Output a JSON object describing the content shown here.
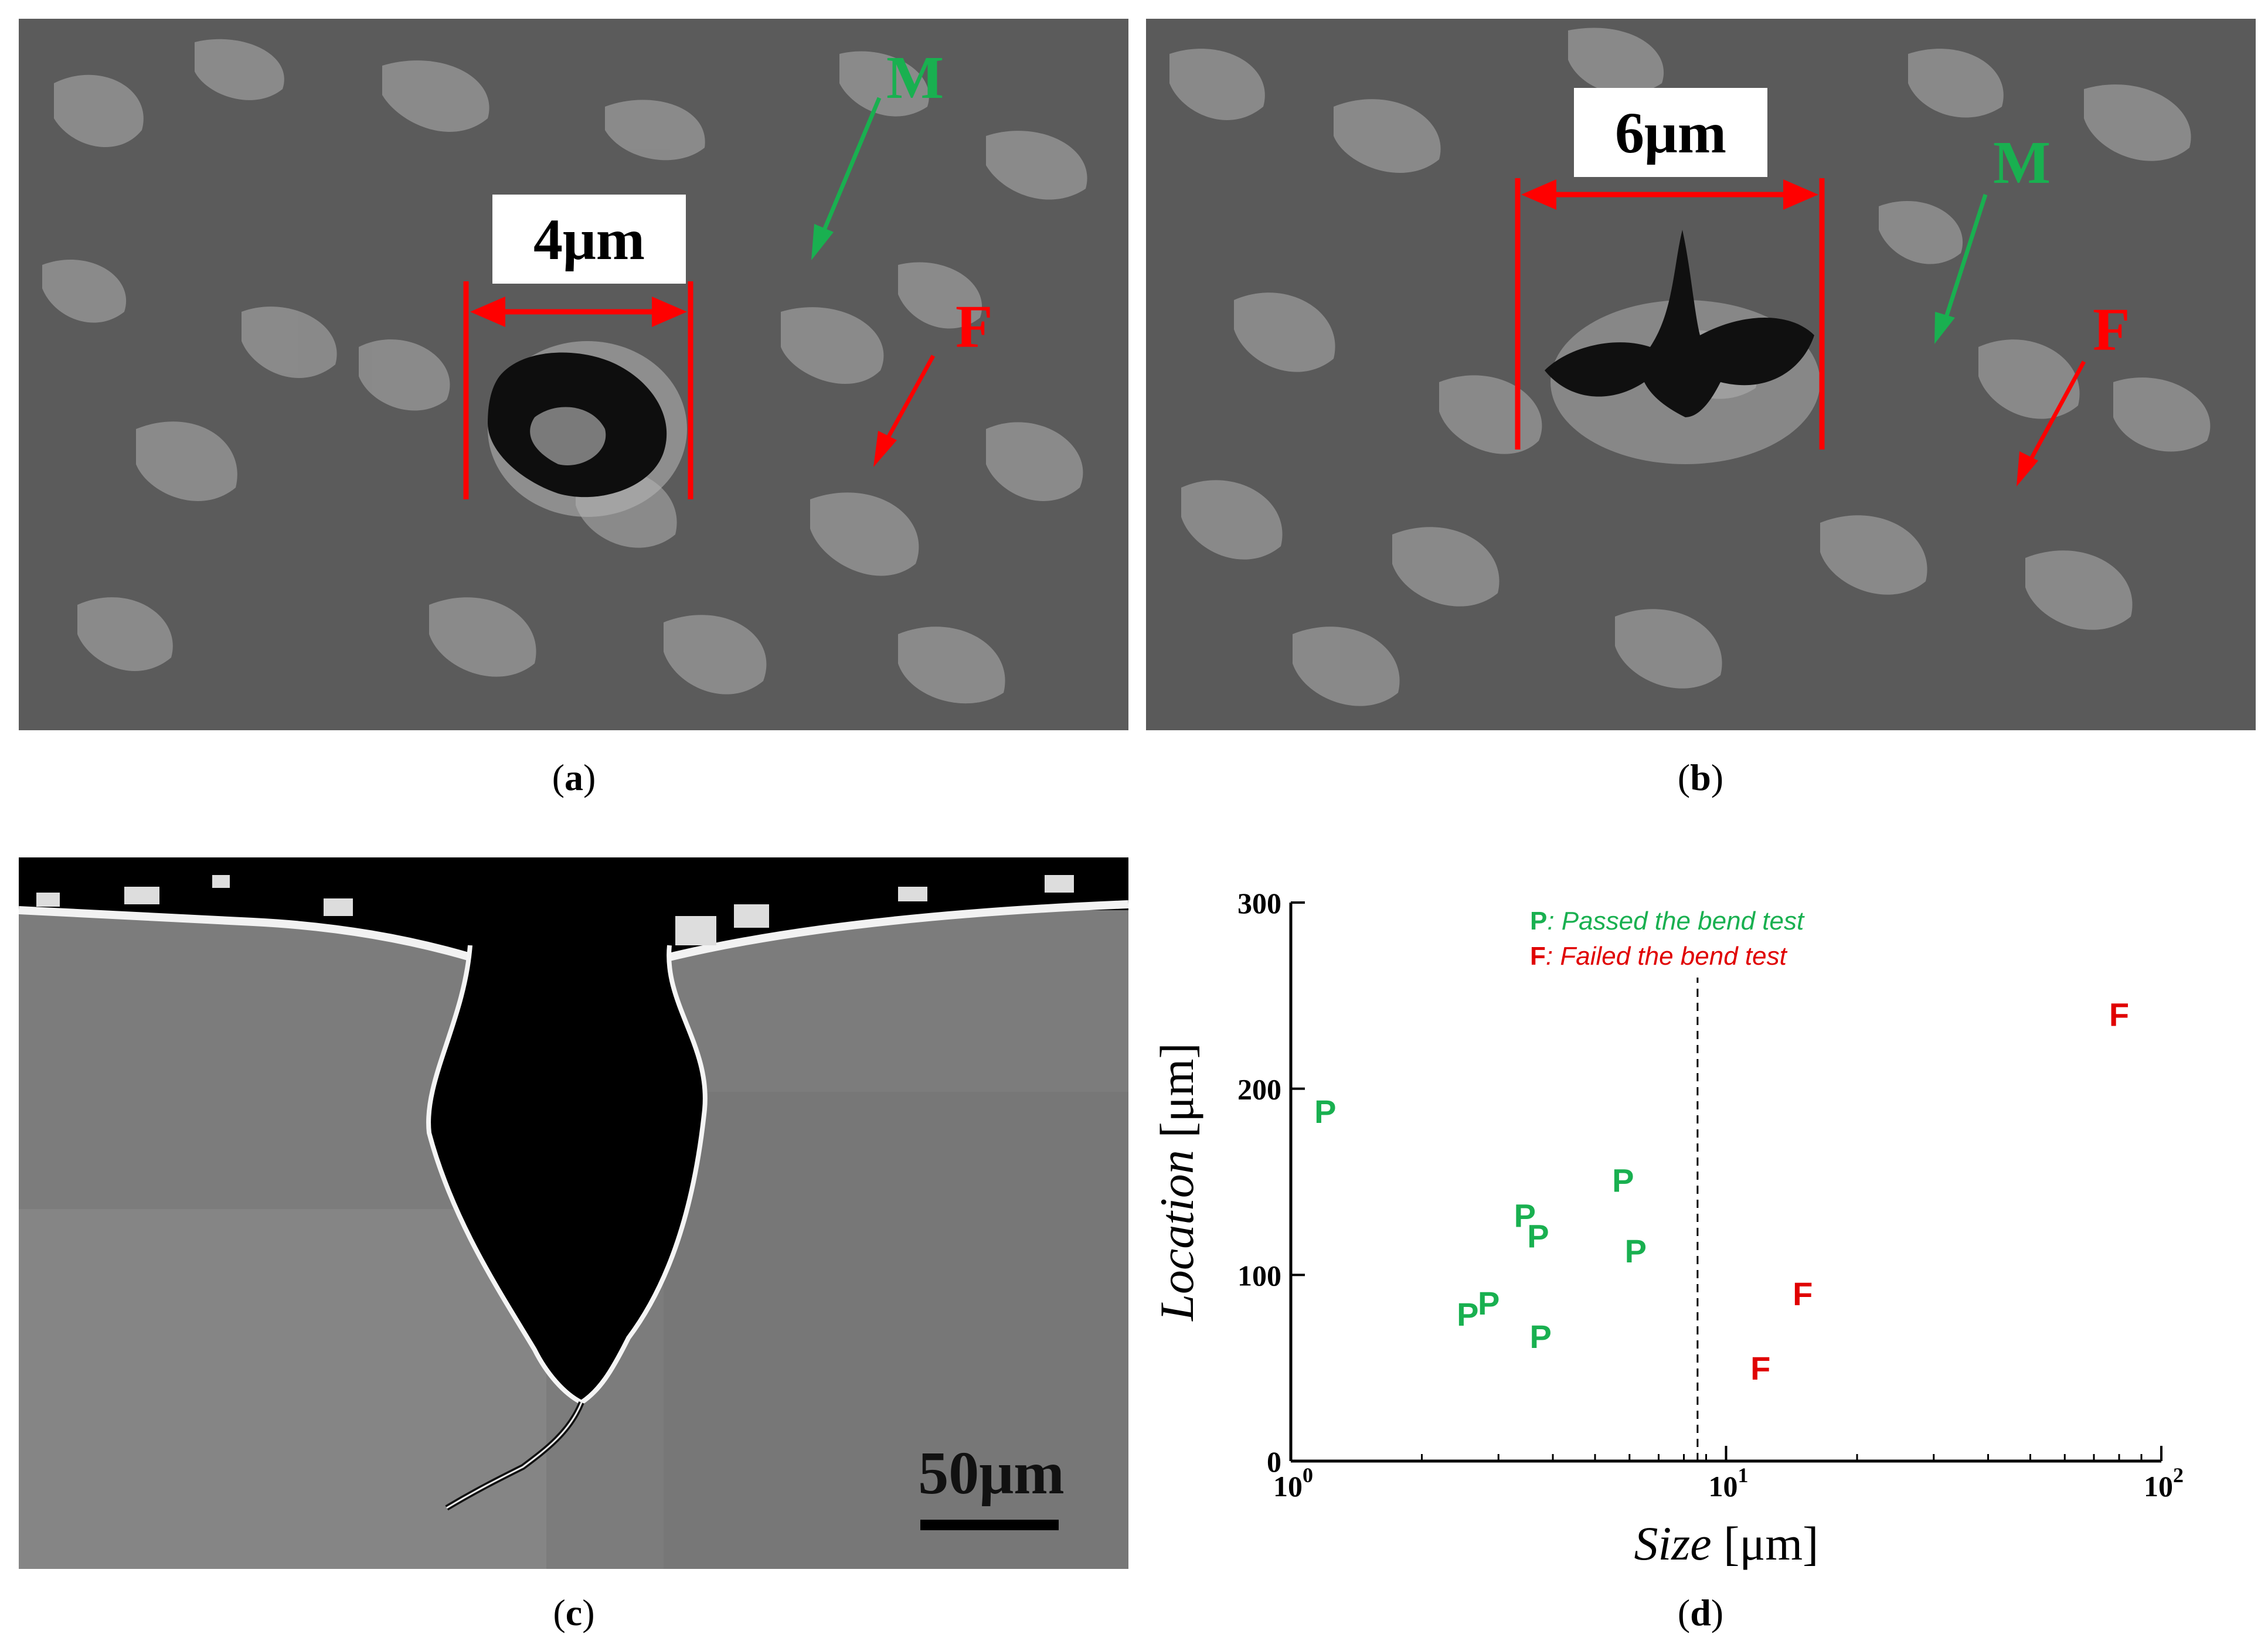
{
  "figure": {
    "panel_a": {
      "caption": "a",
      "scale_label": "4μm",
      "phase_m": "M",
      "phase_f": "F",
      "colors": {
        "dimension": "#ff0000",
        "martensite": "#19b050",
        "ferrite": "#ff0000"
      }
    },
    "panel_b": {
      "caption": "b",
      "scale_label": "6μm",
      "phase_m": "M",
      "phase_f": "F",
      "colors": {
        "dimension": "#ff0000",
        "martensite": "#19b050",
        "ferrite": "#ff0000"
      }
    },
    "panel_c": {
      "caption": "c",
      "scale_bar_label": "50μm"
    },
    "panel_d": {
      "caption": "d"
    }
  },
  "chart_data": {
    "type": "scatter",
    "title": "",
    "xlabel": "Size",
    "xlabel_unit": "[μm]",
    "ylabel": "Location",
    "ylabel_unit": "[μm]",
    "xscale": "log",
    "xlim": [
      1,
      100
    ],
    "ylim": [
      0,
      300
    ],
    "x_ticks": [
      {
        "base": "10",
        "exp": "0",
        "value": 1
      },
      {
        "base": "10",
        "exp": "1",
        "value": 10
      },
      {
        "base": "10",
        "exp": "2",
        "value": 100
      }
    ],
    "y_ticks": [
      "0",
      "100",
      "200",
      "300"
    ],
    "threshold_x": 8.6,
    "legend": [
      {
        "marker": "P",
        "text": ": Passed the bend test",
        "color": "#19b050"
      },
      {
        "marker": "F",
        "text": ": Failed the bend test",
        "color": "#e00000"
      }
    ],
    "series": [
      {
        "name": "Passed the bend test",
        "marker": "P",
        "color": "#19b050",
        "points": [
          {
            "x": 1.2,
            "y": 188
          },
          {
            "x": 3.45,
            "y": 132
          },
          {
            "x": 3.7,
            "y": 121
          },
          {
            "x": 5.8,
            "y": 151
          },
          {
            "x": 6.2,
            "y": 113
          },
          {
            "x": 2.55,
            "y": 79
          },
          {
            "x": 2.85,
            "y": 85
          },
          {
            "x": 3.75,
            "y": 67
          }
        ]
      },
      {
        "name": "Failed the bend test",
        "marker": "F",
        "color": "#e00000",
        "points": [
          {
            "x": 80,
            "y": 240
          },
          {
            "x": 15,
            "y": 90
          },
          {
            "x": 12,
            "y": 50
          }
        ]
      }
    ]
  }
}
